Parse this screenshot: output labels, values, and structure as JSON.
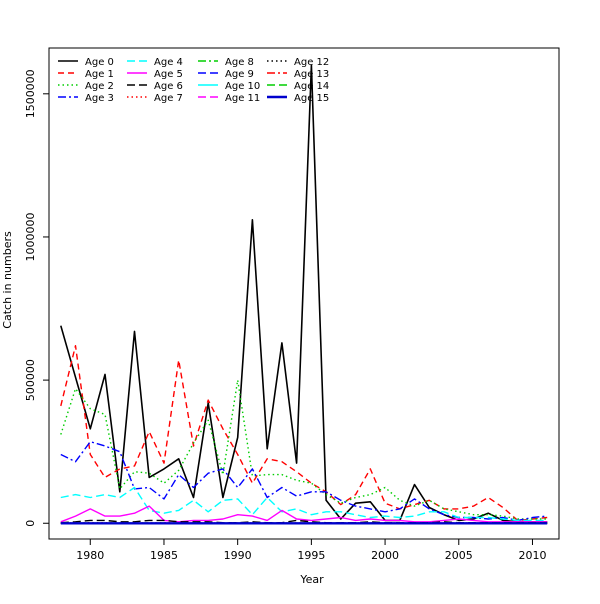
{
  "chart_data": {
    "type": "line",
    "title": "",
    "xlabel": "Year",
    "ylabel": "Catch in numbers",
    "xlim": [
      1977.2,
      2011.8
    ],
    "ylim": [
      -55000,
      1660000
    ],
    "x_ticks": [
      1980,
      1985,
      1990,
      1995,
      2000,
      2005,
      2010
    ],
    "y_ticks": [
      0,
      500000,
      1000000,
      1500000
    ],
    "legend_position": "top-left",
    "x": [
      1978,
      1979,
      1980,
      1981,
      1982,
      1983,
      1984,
      1985,
      1986,
      1987,
      1988,
      1989,
      1990,
      1991,
      1992,
      1993,
      1994,
      1995,
      1996,
      1997,
      1998,
      1999,
      2000,
      2001,
      2002,
      2003,
      2004,
      2005,
      2006,
      2007,
      2008,
      2009,
      2010,
      2011
    ],
    "series": [
      {
        "name": "Age 0",
        "color": "#000000",
        "dash": "solid",
        "width": 1.6,
        "values": [
          690000,
          510000,
          330000,
          520000,
          110000,
          670000,
          160000,
          190000,
          225000,
          90000,
          420000,
          90000,
          300000,
          1060000,
          260000,
          630000,
          210000,
          1600000,
          80000,
          15000,
          70000,
          75000,
          10000,
          10000,
          135000,
          55000,
          30000,
          10000,
          15000,
          35000,
          10000,
          5000,
          5000,
          5000
        ]
      },
      {
        "name": "Age 1",
        "color": "#ff0000",
        "dash": "6,4",
        "width": 1.4,
        "values": [
          410000,
          620000,
          240000,
          160000,
          190000,
          200000,
          320000,
          210000,
          570000,
          270000,
          430000,
          330000,
          240000,
          140000,
          225000,
          215000,
          180000,
          140000,
          110000,
          65000,
          100000,
          190000,
          70000,
          50000,
          65000,
          80000,
          50000,
          50000,
          60000,
          90000,
          55000,
          10000,
          15000,
          20000
        ]
      },
      {
        "name": "Age 2",
        "color": "#00cd00",
        "dash": "1.5,3",
        "width": 1.4,
        "values": [
          310000,
          470000,
          400000,
          380000,
          120000,
          180000,
          175000,
          140000,
          185000,
          280000,
          360000,
          170000,
          500000,
          165000,
          170000,
          170000,
          150000,
          140000,
          100000,
          70000,
          90000,
          100000,
          125000,
          80000,
          60000,
          80000,
          50000,
          40000,
          30000,
          30000,
          25000,
          15000,
          15000,
          15000
        ]
      },
      {
        "name": "Age 3",
        "color": "#0000ff",
        "dash": "8,3,2,3",
        "width": 1.4,
        "values": [
          240000,
          215000,
          285000,
          270000,
          250000,
          120000,
          125000,
          85000,
          170000,
          125000,
          175000,
          190000,
          125000,
          190000,
          90000,
          125000,
          95000,
          110000,
          110000,
          80000,
          60000,
          50000,
          40000,
          50000,
          85000,
          50000,
          30000,
          20000,
          20000,
          15000,
          20000,
          10000,
          20000,
          25000
        ]
      },
      {
        "name": "Age 4",
        "color": "#00ffff",
        "dash": "8,4",
        "width": 1.4,
        "values": [
          90000,
          100000,
          90000,
          100000,
          90000,
          125000,
          45000,
          35000,
          45000,
          80000,
          40000,
          80000,
          85000,
          30000,
          90000,
          40000,
          50000,
          30000,
          40000,
          40000,
          30000,
          20000,
          25000,
          20000,
          25000,
          40000,
          40000,
          20000,
          20000,
          20000,
          15000,
          10000,
          10000,
          10000
        ]
      },
      {
        "name": "Age 5",
        "color": "#ff00ff",
        "dash": "solid",
        "width": 1.4,
        "values": [
          5000,
          25000,
          50000,
          25000,
          25000,
          35000,
          60000,
          10000,
          5000,
          10000,
          10000,
          15000,
          30000,
          25000,
          10000,
          45000,
          15000,
          10000,
          15000,
          20000,
          10000,
          15000,
          10000,
          10000,
          5000,
          5000,
          10000,
          15000,
          10000,
          5000,
          5000,
          5000,
          5000,
          5000
        ]
      },
      {
        "name": "Age 6",
        "color": "#000000",
        "dash": "8,4",
        "width": 1.4,
        "values": [
          2000,
          5000,
          10000,
          10000,
          5000,
          5000,
          10000,
          10000,
          5000,
          5000,
          5000,
          2000,
          2000,
          5000,
          2000,
          2000,
          10000,
          5000,
          2000,
          2000,
          2000,
          5000,
          2000,
          2000,
          2000,
          2000,
          5000,
          2000,
          2000,
          2000,
          2000,
          2000,
          2000,
          2000
        ]
      },
      {
        "name": "Age 7",
        "color": "#ff0000",
        "dash": "1.5,3",
        "width": 1.4,
        "values": [
          1000,
          1000,
          2000,
          2000,
          1000,
          1000,
          1000,
          2000,
          1000,
          1000,
          1000,
          1000,
          1000,
          1000,
          1000,
          1000,
          1000,
          1000,
          1000,
          1000,
          1000,
          1000,
          1000,
          1000,
          1000,
          1000,
          1000,
          1000,
          1000,
          1000,
          1000,
          1000,
          1000,
          1000
        ]
      },
      {
        "name": "Age 8",
        "color": "#00cd00",
        "dash": "8,3,2,3",
        "width": 1.4,
        "values": [
          500,
          500,
          500,
          500,
          500,
          500,
          500,
          500,
          500,
          500,
          500,
          500,
          500,
          500,
          500,
          500,
          500,
          500,
          500,
          500,
          500,
          500,
          500,
          500,
          500,
          500,
          500,
          500,
          500,
          500,
          500,
          500,
          500,
          500
        ]
      },
      {
        "name": "Age 9",
        "color": "#0000ff",
        "dash": "8,4",
        "width": 1.4,
        "values": [
          300,
          300,
          300,
          300,
          300,
          300,
          300,
          300,
          300,
          300,
          300,
          300,
          300,
          300,
          300,
          300,
          300,
          300,
          300,
          300,
          300,
          300,
          300,
          300,
          300,
          300,
          300,
          300,
          300,
          300,
          300,
          300,
          300,
          300
        ]
      },
      {
        "name": "Age 10",
        "color": "#00ffff",
        "dash": "solid",
        "width": 1.4,
        "values": [
          200,
          200,
          200,
          200,
          200,
          200,
          200,
          200,
          200,
          200,
          200,
          200,
          200,
          200,
          200,
          200,
          200,
          200,
          200,
          200,
          200,
          200,
          200,
          200,
          200,
          200,
          200,
          200,
          200,
          200,
          200,
          200,
          200,
          200
        ]
      },
      {
        "name": "Age 11",
        "color": "#ff00ff",
        "dash": "8,4",
        "width": 1.4,
        "values": [
          100,
          100,
          100,
          100,
          100,
          100,
          100,
          100,
          100,
          100,
          100,
          100,
          100,
          100,
          100,
          100,
          100,
          100,
          100,
          100,
          100,
          100,
          100,
          100,
          100,
          100,
          100,
          100,
          100,
          100,
          100,
          100,
          100,
          100
        ]
      },
      {
        "name": "Age 12",
        "color": "#000000",
        "dash": "1.5,3",
        "width": 1.4,
        "values": [
          100,
          100,
          100,
          100,
          100,
          100,
          100,
          100,
          100,
          100,
          100,
          100,
          100,
          100,
          100,
          100,
          100,
          100,
          100,
          100,
          100,
          100,
          100,
          100,
          100,
          100,
          100,
          100,
          100,
          100,
          100,
          100,
          100,
          100
        ]
      },
      {
        "name": "Age 13",
        "color": "#ff0000",
        "dash": "8,3,2,3",
        "width": 1.4,
        "values": [
          50,
          50,
          50,
          50,
          50,
          50,
          50,
          50,
          50,
          50,
          50,
          50,
          50,
          50,
          50,
          50,
          50,
          50,
          50,
          50,
          50,
          50,
          50,
          50,
          50,
          50,
          50,
          50,
          50,
          50,
          50,
          50,
          50,
          50
        ]
      },
      {
        "name": "Age 14",
        "color": "#00cd00",
        "dash": "8,4",
        "width": 1.4,
        "values": [
          50,
          50,
          50,
          50,
          50,
          50,
          50,
          50,
          50,
          50,
          50,
          50,
          50,
          50,
          50,
          50,
          50,
          50,
          50,
          50,
          50,
          50,
          50,
          50,
          50,
          50,
          50,
          50,
          50,
          50,
          50,
          50,
          50,
          50
        ]
      },
      {
        "name": "Age 15",
        "color": "#0000cd",
        "dash": "solid",
        "width": 2.4,
        "values": [
          0,
          0,
          0,
          0,
          0,
          0,
          0,
          0,
          0,
          0,
          0,
          0,
          0,
          0,
          0,
          0,
          0,
          0,
          0,
          0,
          0,
          0,
          0,
          0,
          0,
          0,
          0,
          0,
          0,
          0,
          0,
          0,
          0,
          0
        ]
      }
    ]
  }
}
